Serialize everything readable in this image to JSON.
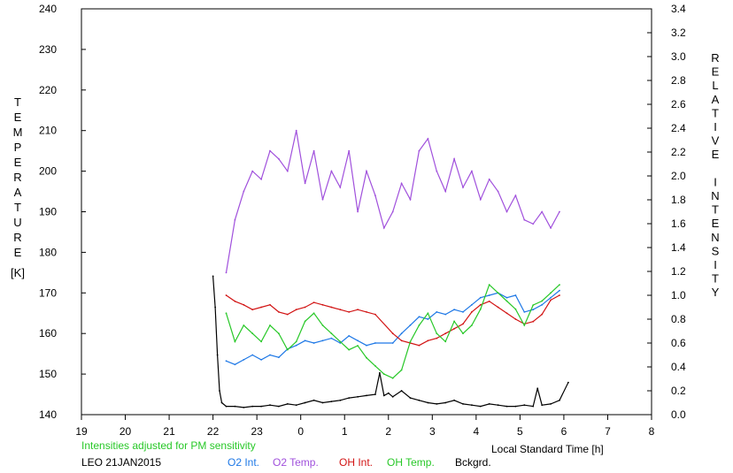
{
  "chart_data": {
    "type": "line",
    "date_label": "LEO 21JAN2015",
    "note": "Intensities adjusted for PM sensitivity",
    "xlabel": "Local Standard Time [h]",
    "ylabel_left": "TEMPERATURE",
    "ylabel_left_unit": "[K]",
    "ylabel_right": "RELATIVE INTENSITY",
    "x_ticks": [
      "19",
      "20",
      "21",
      "22",
      "23",
      "0",
      "1",
      "2",
      "3",
      "4",
      "5",
      "6",
      "7",
      "8"
    ],
    "xlim": [
      19,
      32
    ],
    "ylim_left": [
      140,
      240
    ],
    "y_ticks_left": [
      "140",
      "150",
      "160",
      "170",
      "180",
      "190",
      "200",
      "210",
      "220",
      "230",
      "240"
    ],
    "ylim_right": [
      0,
      3.4
    ],
    "y_ticks_right": [
      "0.0",
      "0.2",
      "0.4",
      "0.6",
      "0.8",
      "1.0",
      "1.2",
      "1.4",
      "1.6",
      "1.8",
      "2.0",
      "2.2",
      "2.4",
      "2.6",
      "2.8",
      "3.0",
      "3.2",
      "3.4"
    ],
    "legend": [
      {
        "label": "O2 Int.",
        "color": "#1e78e6"
      },
      {
        "label": "O2 Temp.",
        "color": "#a050dc"
      },
      {
        "label": "OH Int.",
        "color": "#d21414"
      },
      {
        "label": "OH Temp.",
        "color": "#28c828"
      },
      {
        "label": "Bckgrd.",
        "color": "#000000"
      }
    ],
    "series": [
      {
        "name": "O2 Temp.",
        "axis": "left",
        "color": "#a050dc",
        "x": [
          22.3,
          22.5,
          22.7,
          22.9,
          23.1,
          23.3,
          23.5,
          23.7,
          23.9,
          24.1,
          24.3,
          24.5,
          24.7,
          24.9,
          25.1,
          25.3,
          25.5,
          25.7,
          25.9,
          26.1,
          26.3,
          26.5,
          26.7,
          26.9,
          27.1,
          27.3,
          27.5,
          27.7,
          27.9,
          28.1,
          28.3,
          28.5,
          28.7,
          28.9,
          29.1,
          29.3,
          29.5,
          29.7,
          29.9
        ],
        "y": [
          175,
          188,
          195,
          200,
          198,
          205,
          203,
          200,
          210,
          197,
          205,
          193,
          200,
          196,
          205,
          190,
          200,
          194,
          186,
          190,
          197,
          193,
          205,
          208,
          200,
          195,
          203,
          196,
          200,
          193,
          198,
          195,
          190,
          194,
          188,
          187,
          190,
          186,
          190
        ]
      },
      {
        "name": "O2 Int.",
        "axis": "right",
        "color": "#1e78e6",
        "x": [
          22.3,
          22.5,
          22.7,
          22.9,
          23.1,
          23.3,
          23.5,
          23.7,
          23.9,
          24.1,
          24.3,
          24.5,
          24.7,
          24.9,
          25.1,
          25.3,
          25.5,
          25.7,
          26.1,
          26.3,
          26.5,
          26.7,
          26.9,
          27.1,
          27.3,
          27.5,
          27.7,
          27.9,
          28.1,
          28.3,
          28.5,
          28.7,
          28.9,
          29.1,
          29.3,
          29.5,
          29.7,
          29.9
        ],
        "y": [
          0.45,
          0.42,
          0.46,
          0.5,
          0.46,
          0.5,
          0.48,
          0.55,
          0.58,
          0.62,
          0.6,
          0.62,
          0.64,
          0.6,
          0.66,
          0.62,
          0.58,
          0.6,
          0.6,
          0.68,
          0.75,
          0.82,
          0.8,
          0.86,
          0.84,
          0.88,
          0.86,
          0.92,
          0.98,
          1.0,
          1.02,
          0.98,
          1.0,
          0.86,
          0.88,
          0.92,
          0.98,
          1.04
        ]
      },
      {
        "name": "OH Int.",
        "axis": "right",
        "color": "#d21414",
        "x": [
          22.3,
          22.5,
          22.7,
          22.9,
          23.1,
          23.3,
          23.5,
          23.7,
          23.9,
          24.1,
          24.3,
          24.5,
          24.7,
          24.9,
          25.1,
          25.3,
          25.5,
          25.7,
          26.1,
          26.3,
          26.5,
          26.7,
          26.9,
          27.1,
          27.3,
          27.5,
          27.7,
          27.9,
          28.1,
          28.3,
          28.5,
          28.7,
          28.9,
          29.1,
          29.3,
          29.5,
          29.7,
          29.9
        ],
        "y": [
          1.0,
          0.95,
          0.92,
          0.88,
          0.9,
          0.92,
          0.86,
          0.84,
          0.88,
          0.9,
          0.94,
          0.92,
          0.9,
          0.88,
          0.86,
          0.88,
          0.86,
          0.84,
          0.68,
          0.62,
          0.6,
          0.58,
          0.62,
          0.64,
          0.68,
          0.72,
          0.76,
          0.86,
          0.92,
          0.95,
          0.9,
          0.85,
          0.8,
          0.76,
          0.78,
          0.84,
          0.96,
          1.0
        ]
      },
      {
        "name": "OH Temp.",
        "axis": "left",
        "color": "#28c828",
        "x": [
          22.3,
          22.5,
          22.7,
          22.9,
          23.1,
          23.3,
          23.5,
          23.7,
          23.9,
          24.1,
          24.3,
          24.5,
          24.7,
          24.9,
          25.1,
          25.3,
          25.5,
          25.7,
          25.9,
          26.1,
          26.3,
          26.5,
          26.7,
          26.9,
          27.1,
          27.3,
          27.5,
          27.7,
          27.9,
          28.1,
          28.3,
          28.5,
          28.7,
          28.9,
          29.1,
          29.3,
          29.5,
          29.7,
          29.9
        ],
        "y": [
          165,
          158,
          162,
          160,
          158,
          162,
          160,
          156,
          158,
          163,
          165,
          162,
          160,
          158,
          156,
          157,
          154,
          152,
          150,
          149,
          151,
          158,
          162,
          165,
          160,
          158,
          163,
          160,
          162,
          166,
          172,
          170,
          168,
          166,
          162,
          167,
          168,
          170,
          172
        ]
      },
      {
        "name": "Bckgrd.",
        "axis": "right",
        "color": "#000000",
        "x": [
          22.0,
          22.05,
          22.1,
          22.15,
          22.2,
          22.3,
          22.5,
          22.7,
          22.9,
          23.1,
          23.3,
          23.5,
          23.7,
          23.9,
          24.1,
          24.3,
          24.5,
          24.7,
          24.9,
          25.1,
          25.3,
          25.5,
          25.7,
          25.8,
          25.9,
          26.0,
          26.1,
          26.3,
          26.5,
          26.7,
          26.9,
          27.1,
          27.3,
          27.5,
          27.7,
          27.9,
          28.1,
          28.3,
          28.5,
          28.7,
          28.9,
          29.1,
          29.3,
          29.4,
          29.5,
          29.7,
          29.9,
          30.1
        ],
        "y": [
          1.16,
          0.9,
          0.5,
          0.2,
          0.1,
          0.07,
          0.07,
          0.06,
          0.07,
          0.07,
          0.08,
          0.07,
          0.09,
          0.08,
          0.1,
          0.12,
          0.1,
          0.11,
          0.12,
          0.14,
          0.15,
          0.16,
          0.17,
          0.35,
          0.16,
          0.18,
          0.15,
          0.2,
          0.14,
          0.12,
          0.1,
          0.09,
          0.1,
          0.12,
          0.09,
          0.08,
          0.07,
          0.09,
          0.08,
          0.07,
          0.07,
          0.08,
          0.07,
          0.22,
          0.08,
          0.09,
          0.12,
          0.27
        ]
      }
    ]
  }
}
